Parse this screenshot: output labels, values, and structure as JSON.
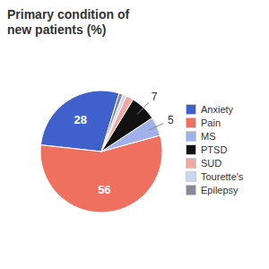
{
  "chart_data": {
    "type": "pie",
    "title": "Primary condition of\nnew patients (%)",
    "categories": [
      "Anxiety",
      "Pain",
      "MS",
      "PTSD",
      "SUD",
      "Tourette's",
      "Epilepsy"
    ],
    "values": [
      28,
      56,
      5,
      7,
      2,
      1,
      1
    ],
    "colors": [
      "#4060cc",
      "#f07060",
      "#a0b0e8",
      "#111111",
      "#f0a8a0",
      "#c8d8f0",
      "#888898"
    ],
    "data_labels": true,
    "value_labels": [
      "28",
      "56",
      "5",
      "7",
      null,
      null,
      null
    ],
    "legend": "right"
  }
}
